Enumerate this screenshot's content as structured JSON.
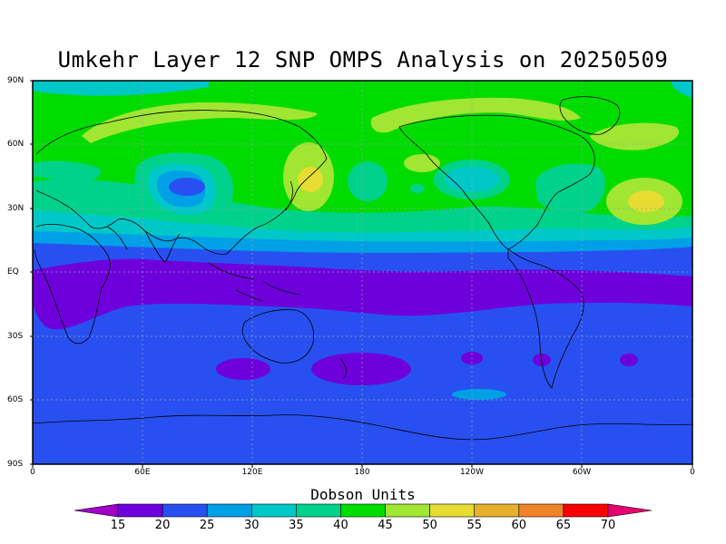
{
  "title": "Umkehr Layer 12 SNP OMPS Analysis on 20250509",
  "y_ticks": [
    "90N",
    "60N",
    "30N",
    "EQ",
    "30S",
    "60S",
    "90S"
  ],
  "x_ticks": [
    "0",
    "60E",
    "120E",
    "180",
    "120W",
    "60W",
    "0"
  ],
  "colorbar": {
    "title": "Dobson Units",
    "labels": [
      "15",
      "20",
      "25",
      "30",
      "35",
      "40",
      "45",
      "50",
      "55",
      "60",
      "65",
      "70"
    ],
    "colors": [
      "#a000c8",
      "#6e00dc",
      "#2850f0",
      "#00a0e6",
      "#00c8c8",
      "#00d28c",
      "#00dc00",
      "#a0e632",
      "#e6dc32",
      "#e6af2d",
      "#f08228",
      "#fa0000",
      "#e6006e"
    ]
  },
  "colors": {
    "frame": "#000000",
    "grid": "#9aa0b0"
  }
}
